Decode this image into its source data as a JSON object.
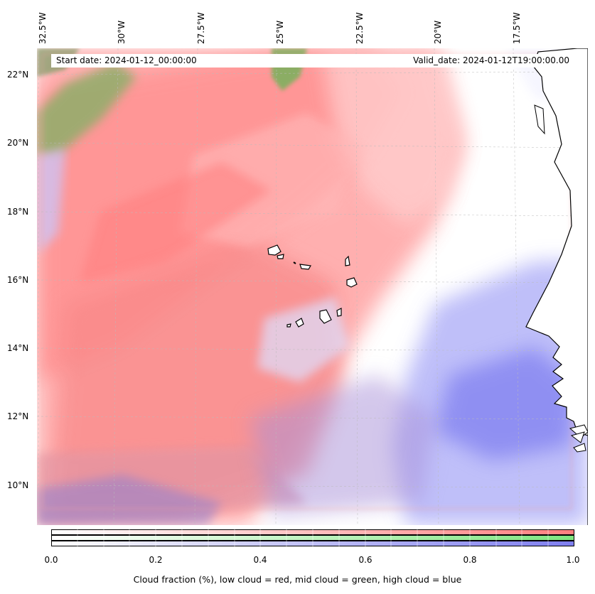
{
  "info": {
    "start_date": "Start date: 2024-01-12_00:00:00",
    "valid_date": "Valid_date: 2024-01-12T19:00:00.00"
  },
  "longitude_labels": [
    "32.5°W",
    "30°W",
    "27.5°W",
    "25°W",
    "22.5°W",
    "20°W",
    "17.5°W"
  ],
  "latitude_labels": [
    "22°N",
    "20°N",
    "18°N",
    "16°N",
    "14°N",
    "12°N",
    "10°N"
  ],
  "colorbar": {
    "ticks": [
      "0.0",
      "0.2",
      "0.4",
      "0.6",
      "0.8",
      "1.0"
    ],
    "label": "Cloud fraction (%), low cloud = red, mid cloud = green, high cloud = blue",
    "colors": {
      "low": "#ff7f7f",
      "mid": "#7fe57f",
      "high": "#7f7fef"
    }
  },
  "map": {
    "land_color": "#ffffff",
    "coastline_color": "#000000",
    "gridline_color": "#bbbbbb"
  }
}
